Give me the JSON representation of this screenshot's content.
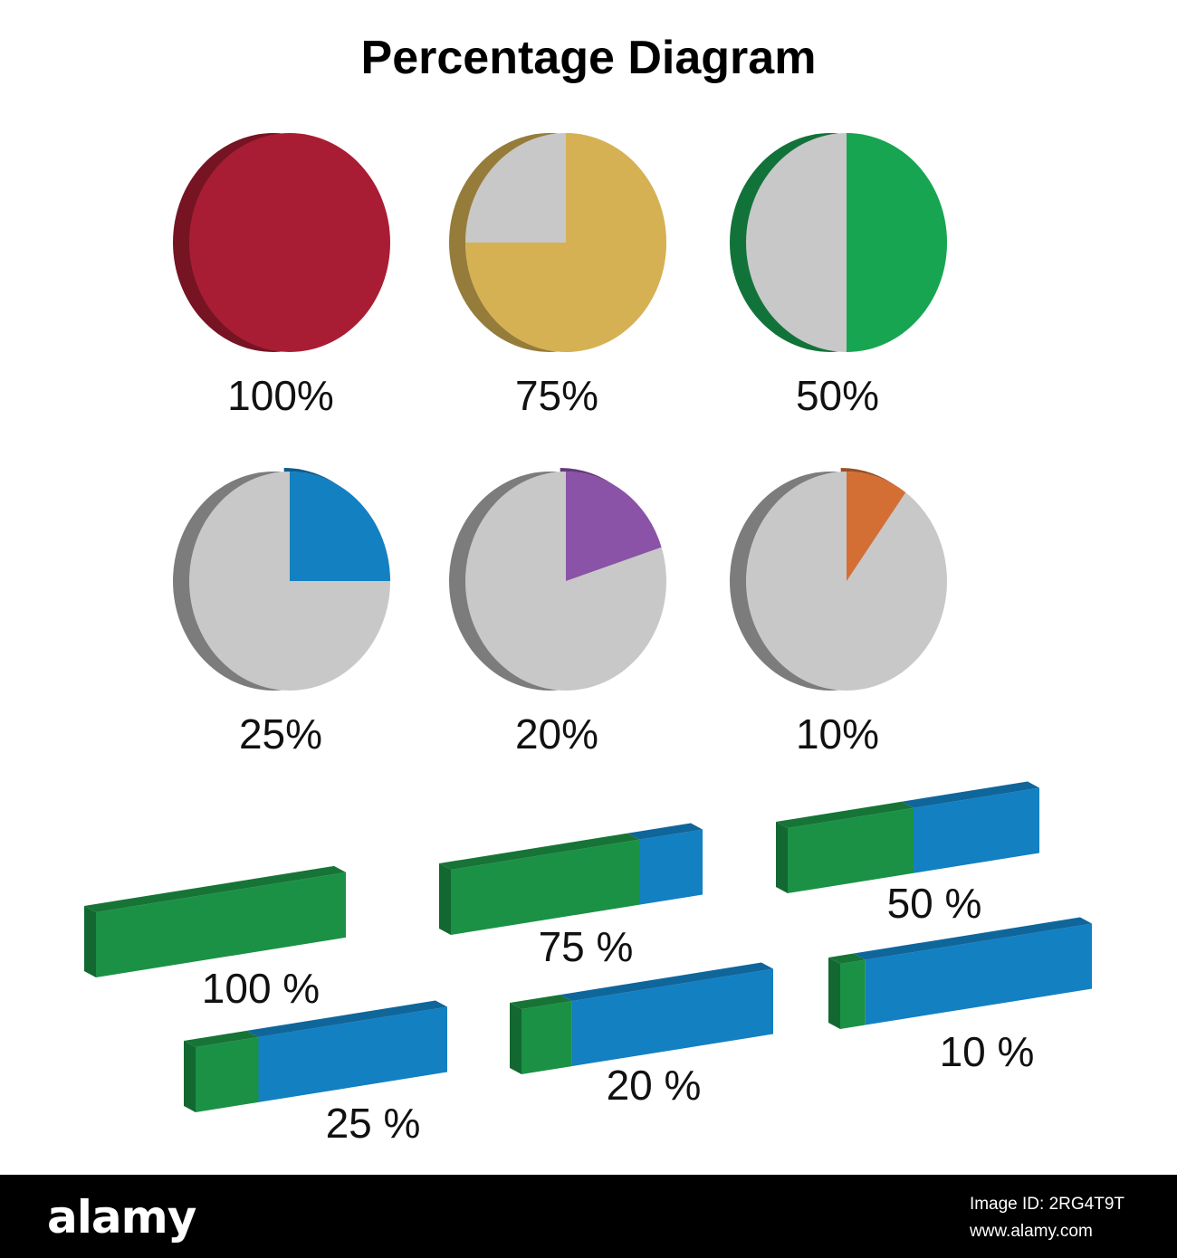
{
  "title": "Percentage Diagram",
  "colors": {
    "remainder": "#c8c8c8",
    "bar_fill": "#1b9145",
    "bar_empty": "#1380c2"
  },
  "chart_data": [
    {
      "type": "pie",
      "pies": [
        {
          "label": "100%",
          "value": 100,
          "color": "#a91d34"
        },
        {
          "label": "75%",
          "value": 75,
          "color": "#d6b153"
        },
        {
          "label": "50%",
          "value": 50,
          "color": "#18a552"
        },
        {
          "label": "25%",
          "value": 25,
          "color": "#1380c2"
        },
        {
          "label": "20%",
          "value": 20,
          "color": "#8a53a7"
        },
        {
          "label": "10%",
          "value": 10,
          "color": "#d36f35"
        }
      ]
    },
    {
      "type": "bar",
      "bars": [
        {
          "label": "100 %",
          "value": 100
        },
        {
          "label": "75 %",
          "value": 75
        },
        {
          "label": "50 %",
          "value": 50
        },
        {
          "label": "25 %",
          "value": 25
        },
        {
          "label": "20 %",
          "value": 20
        },
        {
          "label": "10 %",
          "value": 10
        }
      ]
    }
  ],
  "watermark": {
    "logo": "alamy",
    "image_id": "Image ID: 2RG4T9T",
    "site": "www.alamy.com"
  }
}
